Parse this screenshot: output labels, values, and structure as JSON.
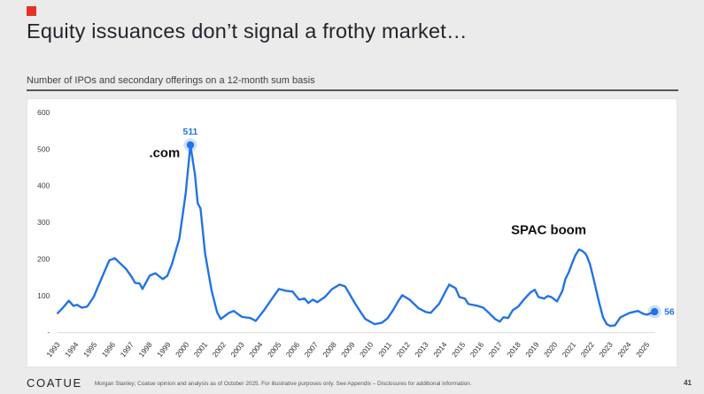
{
  "slide": {
    "title": "Equity issuances don’t signal a frothy market…",
    "subtitle": "Number of IPOs and secondary offerings on a 12-month sum basis",
    "brand_red": "#e23328"
  },
  "footer": {
    "logo": "COATUE",
    "disclaimer": "Morgan Stanley; Coatue opinion and analysis as of October 2025. For illustrative purposes only.  See Appendix – Disclosures for additional information.",
    "page_number": "41"
  },
  "chart_data": {
    "type": "line",
    "title": "Number of IPOs and secondary offerings on a 12-month sum basis",
    "xlim": [
      1993,
      2026
    ],
    "ylim": [
      0,
      600
    ],
    "grid": false,
    "legend": "none",
    "line_color": "#2273e6",
    "axis_color": "#d9d9d9",
    "yticks": [
      {
        "v": 0,
        "label": "-"
      },
      {
        "v": 100,
        "label": "100"
      },
      {
        "v": 200,
        "label": "200"
      },
      {
        "v": 300,
        "label": "300"
      },
      {
        "v": 400,
        "label": "400"
      },
      {
        "v": 500,
        "label": "500"
      },
      {
        "v": 600,
        "label": "600"
      }
    ],
    "xticks": [
      1993,
      1994,
      1995,
      1996,
      1997,
      1998,
      1999,
      2000,
      2001,
      2002,
      2003,
      2004,
      2005,
      2006,
      2007,
      2008,
      2009,
      2010,
      2011,
      2012,
      2013,
      2014,
      2015,
      2016,
      2017,
      2018,
      2019,
      2020,
      2021,
      2022,
      2023,
      2024,
      2025
    ],
    "series": [
      {
        "name": "IPOs and secondary offerings, 12-month sum",
        "points": [
          [
            1993.0,
            52
          ],
          [
            1993.3,
            68
          ],
          [
            1993.6,
            86
          ],
          [
            1993.85,
            72
          ],
          [
            1994.05,
            75
          ],
          [
            1994.3,
            67
          ],
          [
            1994.6,
            70
          ],
          [
            1994.95,
            96
          ],
          [
            1995.4,
            150
          ],
          [
            1995.8,
            196
          ],
          [
            1996.1,
            202
          ],
          [
            1996.35,
            190
          ],
          [
            1996.7,
            173
          ],
          [
            1997.0,
            152
          ],
          [
            1997.2,
            135
          ],
          [
            1997.45,
            133
          ],
          [
            1997.6,
            118
          ],
          [
            1998.0,
            155
          ],
          [
            1998.3,
            161
          ],
          [
            1998.7,
            145
          ],
          [
            1998.95,
            154
          ],
          [
            1999.2,
            186
          ],
          [
            1999.6,
            255
          ],
          [
            1999.95,
            380
          ],
          [
            2000.2,
            511
          ],
          [
            2000.45,
            430
          ],
          [
            2000.6,
            352
          ],
          [
            2000.75,
            338
          ],
          [
            2001.0,
            215
          ],
          [
            2001.35,
            115
          ],
          [
            2001.65,
            55
          ],
          [
            2001.85,
            36
          ],
          [
            2002.3,
            53
          ],
          [
            2002.55,
            58
          ],
          [
            2003.0,
            42
          ],
          [
            2003.45,
            39
          ],
          [
            2003.75,
            31
          ],
          [
            2004.2,
            60
          ],
          [
            2004.5,
            82
          ],
          [
            2005.0,
            118
          ],
          [
            2005.4,
            113
          ],
          [
            2005.75,
            111
          ],
          [
            2006.1,
            89
          ],
          [
            2006.4,
            92
          ],
          [
            2006.6,
            80
          ],
          [
            2006.85,
            89
          ],
          [
            2007.1,
            82
          ],
          [
            2007.5,
            96
          ],
          [
            2007.9,
            118
          ],
          [
            2008.3,
            130
          ],
          [
            2008.6,
            125
          ],
          [
            2009.1,
            82
          ],
          [
            2009.4,
            58
          ],
          [
            2009.7,
            36
          ],
          [
            2010.2,
            22
          ],
          [
            2010.6,
            26
          ],
          [
            2010.9,
            38
          ],
          [
            2011.2,
            60
          ],
          [
            2011.45,
            82
          ],
          [
            2011.7,
            101
          ],
          [
            2012.1,
            89
          ],
          [
            2012.6,
            65
          ],
          [
            2013.0,
            55
          ],
          [
            2013.25,
            53
          ],
          [
            2013.7,
            77
          ],
          [
            2014.0,
            106
          ],
          [
            2014.25,
            130
          ],
          [
            2014.6,
            120
          ],
          [
            2014.8,
            96
          ],
          [
            2015.1,
            92
          ],
          [
            2015.3,
            77
          ],
          [
            2015.8,
            72
          ],
          [
            2016.1,
            67
          ],
          [
            2016.4,
            53
          ],
          [
            2016.75,
            36
          ],
          [
            2017.0,
            29
          ],
          [
            2017.2,
            41
          ],
          [
            2017.45,
            39
          ],
          [
            2017.7,
            60
          ],
          [
            2018.0,
            70
          ],
          [
            2018.3,
            89
          ],
          [
            2018.65,
            108
          ],
          [
            2018.9,
            116
          ],
          [
            2019.1,
            96
          ],
          [
            2019.4,
            92
          ],
          [
            2019.6,
            99
          ],
          [
            2019.8,
            96
          ],
          [
            2020.1,
            84
          ],
          [
            2020.4,
            113
          ],
          [
            2020.55,
            144
          ],
          [
            2020.75,
            165
          ],
          [
            2020.9,
            185
          ],
          [
            2021.1,
            210
          ],
          [
            2021.3,
            226
          ],
          [
            2021.5,
            221
          ],
          [
            2021.65,
            214
          ],
          [
            2021.75,
            205
          ],
          [
            2021.9,
            185
          ],
          [
            2022.1,
            144
          ],
          [
            2022.35,
            89
          ],
          [
            2022.6,
            41
          ],
          [
            2022.8,
            22
          ],
          [
            2023.0,
            17
          ],
          [
            2023.25,
            19
          ],
          [
            2023.55,
            41
          ],
          [
            2024.05,
            53
          ],
          [
            2024.5,
            58
          ],
          [
            2024.8,
            50
          ],
          [
            2025.0,
            48
          ],
          [
            2025.2,
            52
          ],
          [
            2025.4,
            56
          ]
        ]
      }
    ],
    "annotations": [
      {
        "text": ".com",
        "year": 1998.8,
        "value": 478,
        "style": "bold-dark",
        "anchor": "middle"
      },
      {
        "text": "SPAC boom",
        "year": 2019.65,
        "value": 268,
        "style": "bold-dark",
        "anchor": "middle"
      },
      {
        "text": "511",
        "year": 2000.2,
        "value": 511,
        "style": "bold-blue",
        "anchor": "middle",
        "dy": -12,
        "marker": true
      },
      {
        "text": "56",
        "year": 2025.4,
        "value": 56,
        "style": "bold-blue",
        "anchor": "start",
        "dx": 11,
        "dy": 3.5,
        "marker": true
      }
    ]
  }
}
